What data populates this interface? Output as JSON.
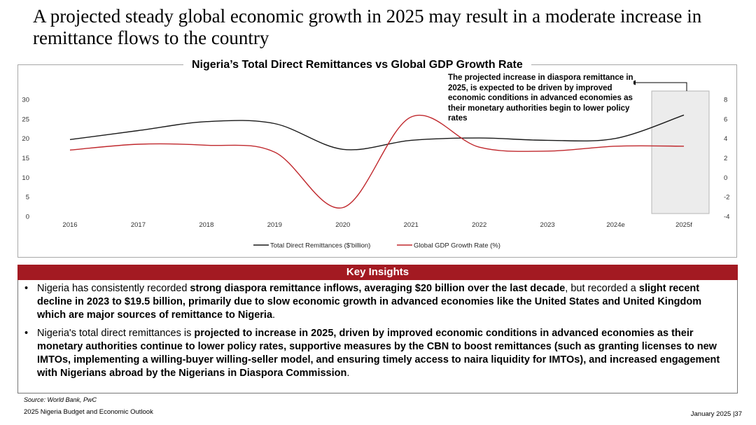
{
  "page": {
    "title": "A projected steady global economic growth in 2025 may result in a moderate increase in remittance flows to the country",
    "source": "Source: World Bank, PwC",
    "footer_left": "2025 Nigeria Budget and Economic Outlook",
    "footer_right": "January 2025 |37"
  },
  "annotation": {
    "text": "The projected increase in diaspora remittance in 2025, is expected to be driven by improved economic conditions in advanced economies as their monetary authorities begin to lower policy rates"
  },
  "insights": {
    "heading": "Key Insights",
    "items": [
      [
        {
          "t": "Nigeria has consistently recorded ",
          "b": false
        },
        {
          "t": "strong diaspora remittance inflows, averaging $20 billion over the last decade",
          "b": true
        },
        {
          "t": ", but recorded a ",
          "b": false
        },
        {
          "t": "slight recent decline in 2023 to $19.5 billion, primarily due to slow economic growth in advanced economies like the United States and United Kingdom which are major sources of remittance to Nigeria",
          "b": true
        },
        {
          "t": ".",
          "b": false
        }
      ],
      [
        {
          "t": "Nigeria's total direct remittances is ",
          "b": false
        },
        {
          "t": "projected to increase in 2025, driven by improved economic conditions in advanced economies as their monetary authorities continue to lower policy rates, supportive measures by the CBN to boost remittances (such as granting licenses to new IMTOs, implementing a willing-buyer willing-seller model, and ensuring timely access to naira liquidity for IMTOs), and increased engagement with Nigerians abroad by the Nigerians in Diaspora Commission",
          "b": true
        },
        {
          "t": ".",
          "b": false
        }
      ]
    ]
  },
  "chart_data": {
    "type": "line",
    "title": "Nigeria’s Total Direct Remittances vs  Global GDP Growth Rate",
    "categories": [
      "2016",
      "2017",
      "2018",
      "2019",
      "2020",
      "2021",
      "2022",
      "2023",
      "2024e",
      "2025f"
    ],
    "series": [
      {
        "name": "Total Direct Remittances ($'billion)",
        "axis": "left",
        "color": "#1a1a1a",
        "values": [
          19.7,
          22.0,
          24.3,
          23.8,
          17.2,
          19.5,
          20.1,
          19.5,
          20.0,
          26.0
        ]
      },
      {
        "name": "Global GDP Growth Rate (%)",
        "axis": "right",
        "color": "#c0282d",
        "values": [
          2.8,
          3.4,
          3.3,
          2.6,
          -3.1,
          6.2,
          3.1,
          2.7,
          3.2,
          3.2
        ]
      }
    ],
    "y_left": {
      "min": 0,
      "max": 30,
      "ticks": [
        "0",
        "5",
        "10",
        "15",
        "20",
        "25",
        "30"
      ]
    },
    "y_right": {
      "min": -4,
      "max": 8,
      "ticks": [
        "-4",
        "-2",
        "0",
        "2",
        "4",
        "6",
        "8"
      ]
    },
    "highlight_category": "2025f",
    "legend_position": "bottom-center",
    "grid": false
  }
}
